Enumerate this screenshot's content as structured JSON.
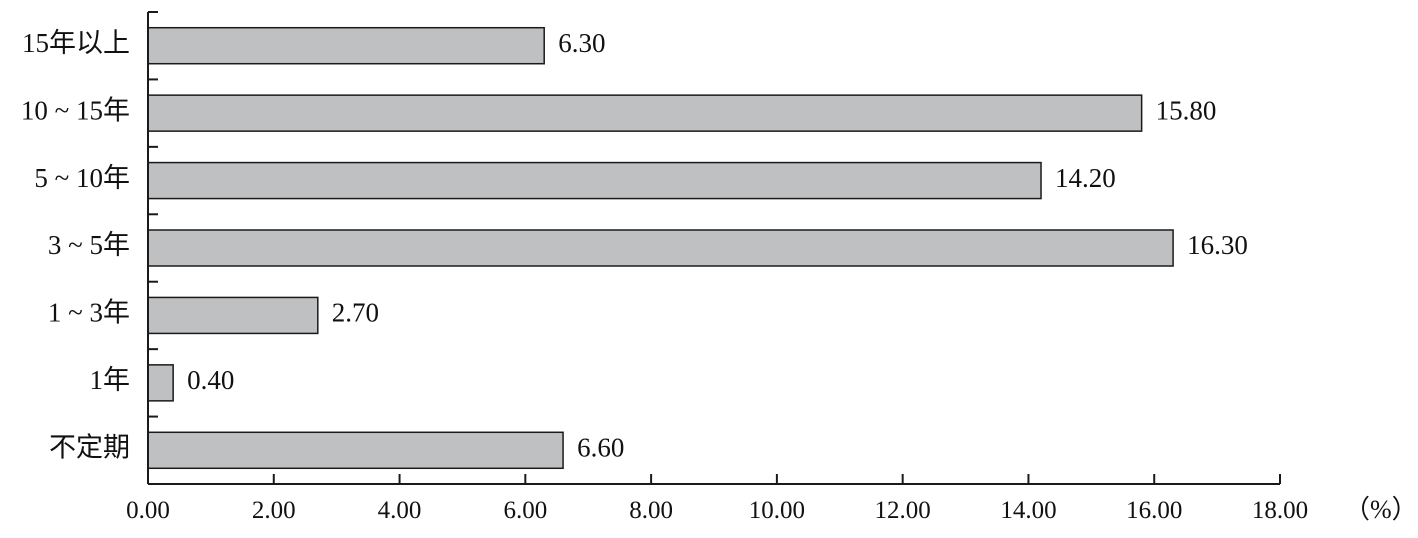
{
  "chart_data": {
    "type": "bar",
    "orientation": "horizontal",
    "categories": [
      "15年以上",
      "10 ~ 15年",
      "5 ~ 10年",
      "3 ~ 5年",
      "1 ~ 3年",
      "1年",
      "不定期"
    ],
    "values": [
      6.3,
      15.8,
      14.2,
      16.3,
      2.7,
      0.4,
      6.6
    ],
    "value_labels": [
      "6.30",
      "15.80",
      "14.20",
      "16.30",
      "2.70",
      "0.40",
      "6.60"
    ],
    "xlim": [
      0,
      18
    ],
    "xticks": [
      0,
      2,
      4,
      6,
      8,
      10,
      12,
      14,
      16,
      18
    ],
    "xtick_labels": [
      "0.00",
      "2.00",
      "4.00",
      "6.00",
      "8.00",
      "10.00",
      "12.00",
      "14.00",
      "16.00",
      "18.00"
    ],
    "xunit": "（%）",
    "title": "",
    "xlabel": "",
    "ylabel": "",
    "grid": false,
    "bar_color": "#bfc0c2",
    "edge_color": "#1a1a1a"
  }
}
